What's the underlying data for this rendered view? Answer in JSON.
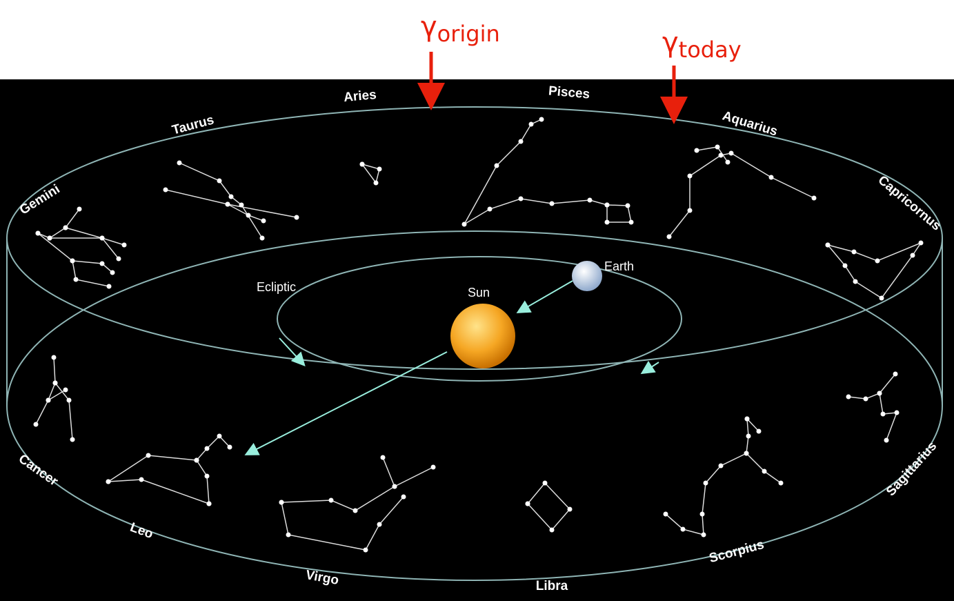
{
  "annotations": [
    {
      "symbol": "γ",
      "subscript": "origin"
    },
    {
      "symbol": "γ",
      "subscript": "today"
    }
  ],
  "zodiac": [
    "Aries",
    "Pisces",
    "Taurus",
    "Aquarius",
    "Gemini",
    "Capricornus",
    "Cancer",
    "Sagittarius",
    "Leo",
    "Scorpius",
    "Virgo",
    "Libra"
  ],
  "ecliptic": "Ecliptic",
  "sun": "Sun",
  "earth": "Earth"
}
